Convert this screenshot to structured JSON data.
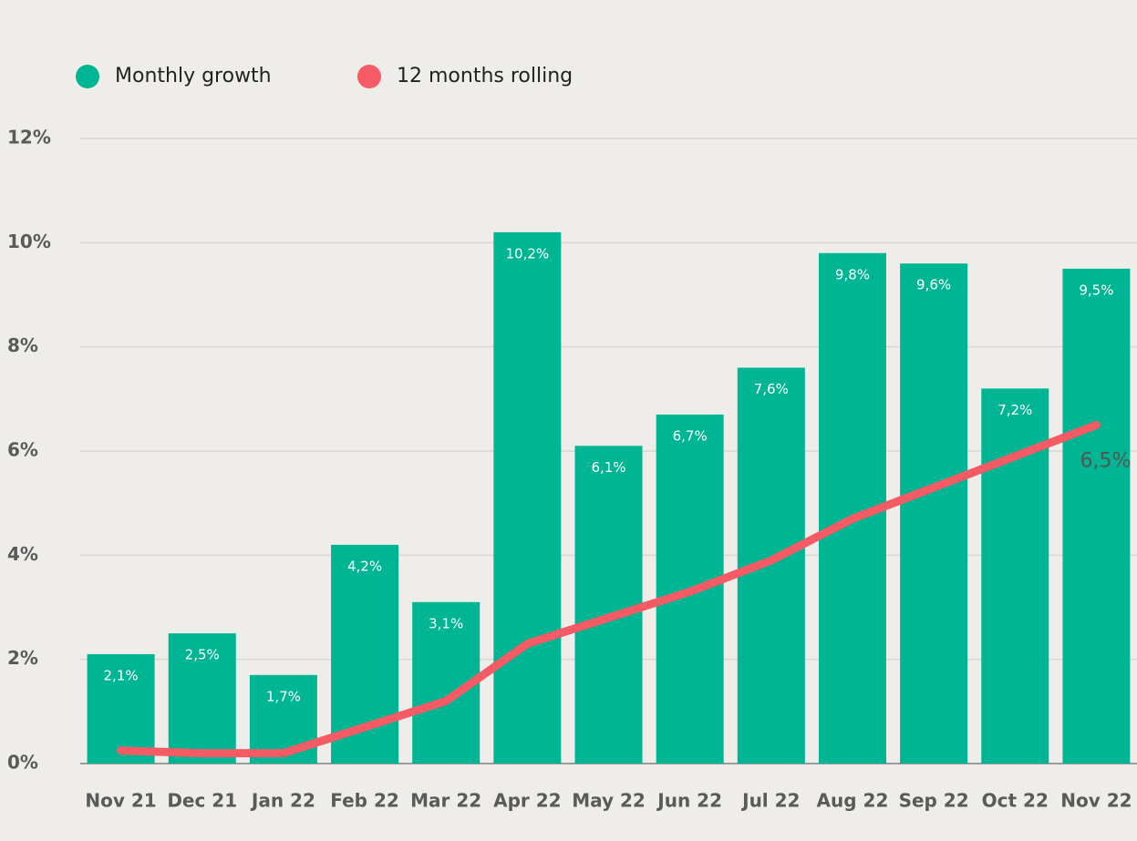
{
  "chart_data": {
    "type": "bar_line",
    "categories": [
      "Nov 21",
      "Dec 21",
      "Jan 22",
      "Feb 22",
      "Mar 22",
      "Apr 22",
      "May 22",
      "Jun 22",
      "Jul 22",
      "Aug 22",
      "Sep 22",
      "Oct 22",
      "Nov 22"
    ],
    "series": [
      {
        "name": "Monthly growth",
        "type": "bar",
        "color": "#00b594",
        "values": [
          2.1,
          2.5,
          1.7,
          4.2,
          3.1,
          10.2,
          6.1,
          6.7,
          7.6,
          9.8,
          9.6,
          7.2,
          9.5
        ],
        "value_labels": [
          "2,1%",
          "2,5%",
          "1,7%",
          "4,2%",
          "3,1%",
          "10,2%",
          "6,1%",
          "6,7%",
          "7,6%",
          "9,8%",
          "9,6%",
          "7,2%",
          "9,5%"
        ]
      },
      {
        "name": "12 months rolling",
        "type": "line",
        "color": "#f45b64",
        "values": [
          0.25,
          0.2,
          0.2,
          0.7,
          1.2,
          2.3,
          2.8,
          3.3,
          3.9,
          4.7,
          5.3,
          5.9,
          6.5
        ],
        "value_labels": [
          null,
          null,
          null,
          null,
          null,
          null,
          null,
          null,
          null,
          null,
          null,
          null,
          "6,5%"
        ]
      }
    ],
    "ylim": [
      0,
      12
    ],
    "yticks": [
      {
        "value": 0,
        "label": "0%"
      },
      {
        "value": 2,
        "label": "2%"
      },
      {
        "value": 4,
        "label": "4%"
      },
      {
        "value": 6,
        "label": "6%"
      },
      {
        "value": 8,
        "label": "8%"
      },
      {
        "value": 10,
        "label": "10%"
      },
      {
        "value": 12,
        "label": "12%"
      }
    ],
    "grid": true,
    "legend": "top-left"
  }
}
